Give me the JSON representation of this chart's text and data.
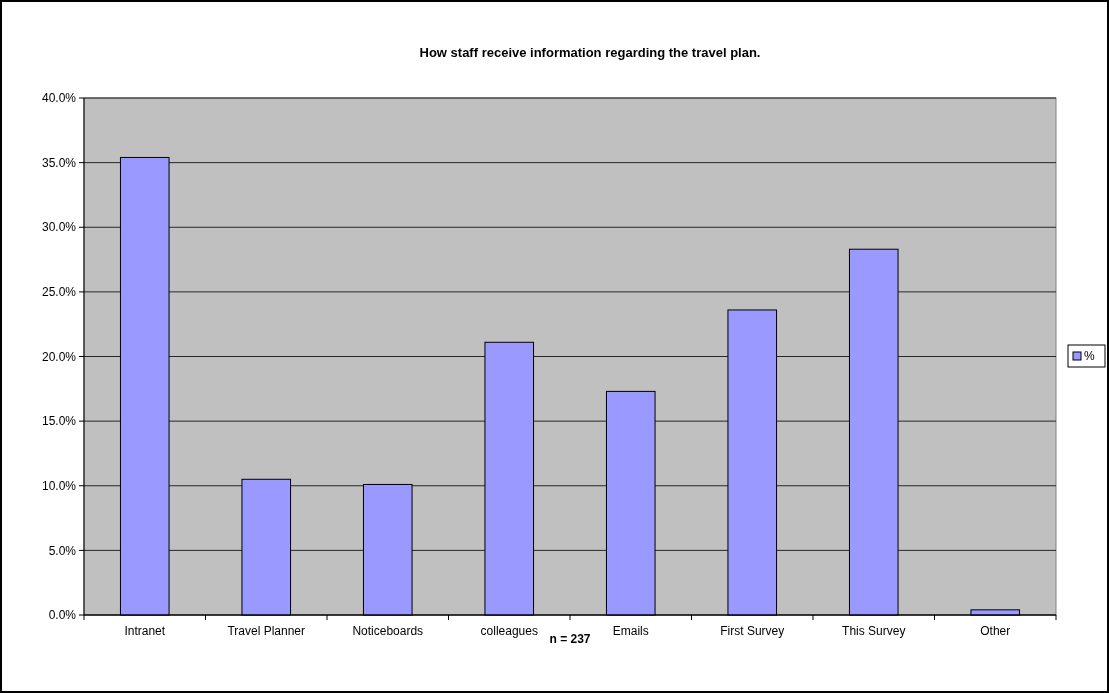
{
  "chart_data": {
    "type": "bar",
    "title": "How staff receive information regarding the travel plan.",
    "xlabel": "n = 237",
    "categories": [
      "Intranet",
      "Travel Planner",
      "Noticeboards",
      "colleagues",
      "Emails",
      "First Survey",
      "This Survey",
      "Other"
    ],
    "series": [
      {
        "name": "%",
        "color": "#9999ff",
        "values": [
          35.4,
          10.5,
          10.1,
          21.1,
          17.3,
          23.6,
          28.3,
          0.4
        ]
      }
    ],
    "ylim": [
      0,
      40
    ],
    "yticks": [
      {
        "value": 0,
        "label": "0.0%"
      },
      {
        "value": 5,
        "label": "5.0%"
      },
      {
        "value": 10,
        "label": "10.0%"
      },
      {
        "value": 15,
        "label": "15.0%"
      },
      {
        "value": 20,
        "label": "20.0%"
      },
      {
        "value": 25,
        "label": "25.0%"
      },
      {
        "value": 30,
        "label": "30.0%"
      },
      {
        "value": 35,
        "label": "35.0%"
      },
      {
        "value": 40,
        "label": "40.0%"
      }
    ],
    "grid": "y",
    "legend": "right"
  }
}
